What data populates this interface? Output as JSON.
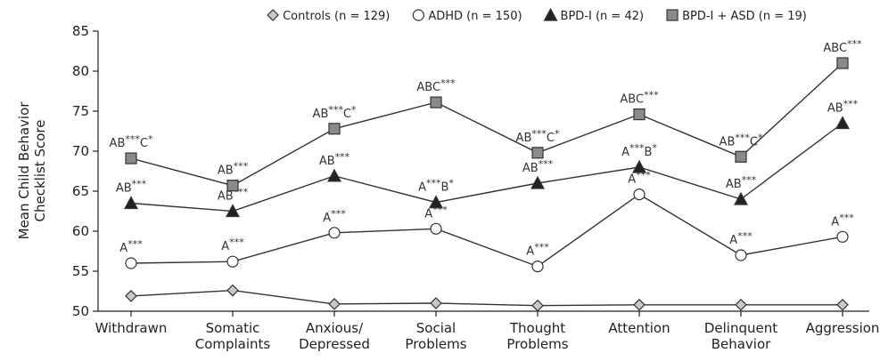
{
  "chart_data": {
    "type": "line",
    "y_label": "Mean Child Behavior\nChecklist Score",
    "categories": [
      "Withdrawn",
      "Somatic\nComplaints",
      "Anxious/\nDepressed",
      "Social\nProblems",
      "Thought\nProblems",
      "Attention",
      "Delinquent\nBehavior",
      "Aggression"
    ],
    "ylim": [
      50,
      85
    ],
    "yticks": [
      50,
      55,
      60,
      65,
      70,
      75,
      80,
      85
    ],
    "grid": false,
    "legend": "top",
    "line_color": "#333333",
    "series": [
      {
        "name": "Controls (n = 129)",
        "marker": "diamond",
        "color": "#c8c8c8",
        "values": [
          51.9,
          52.6,
          50.9,
          51.0,
          50.7,
          50.8,
          50.8,
          50.8
        ]
      },
      {
        "name": "ADHD (n = 150)",
        "marker": "circle",
        "color": "#ffffff",
        "values": [
          56.0,
          56.2,
          59.8,
          60.3,
          55.6,
          64.6,
          57.0,
          59.3
        ],
        "annotations": [
          "A***",
          "A***",
          "A***",
          "A***",
          "A***",
          "A***",
          "A***",
          "A***"
        ]
      },
      {
        "name": "BPD-I (n = 42)",
        "marker": "triangle",
        "color": "#222222",
        "values": [
          63.5,
          62.5,
          66.9,
          63.6,
          66.0,
          68.0,
          64.0,
          73.5
        ],
        "annotations": [
          "AB***",
          "AB***",
          "AB***",
          "A***B*",
          "AB***",
          "A***B*",
          "AB***",
          "AB***"
        ]
      },
      {
        "name": "BPD-I + ASD (n = 19)",
        "marker": "square",
        "color": "#8a8a8a",
        "values": [
          69.1,
          65.7,
          72.8,
          76.1,
          69.8,
          74.6,
          69.3,
          81.0
        ],
        "annotations": [
          "AB***C*",
          "AB***",
          "AB***C*",
          "ABC***",
          "AB***C*",
          "ABC***",
          "AB***C*",
          "ABC***"
        ]
      }
    ]
  }
}
